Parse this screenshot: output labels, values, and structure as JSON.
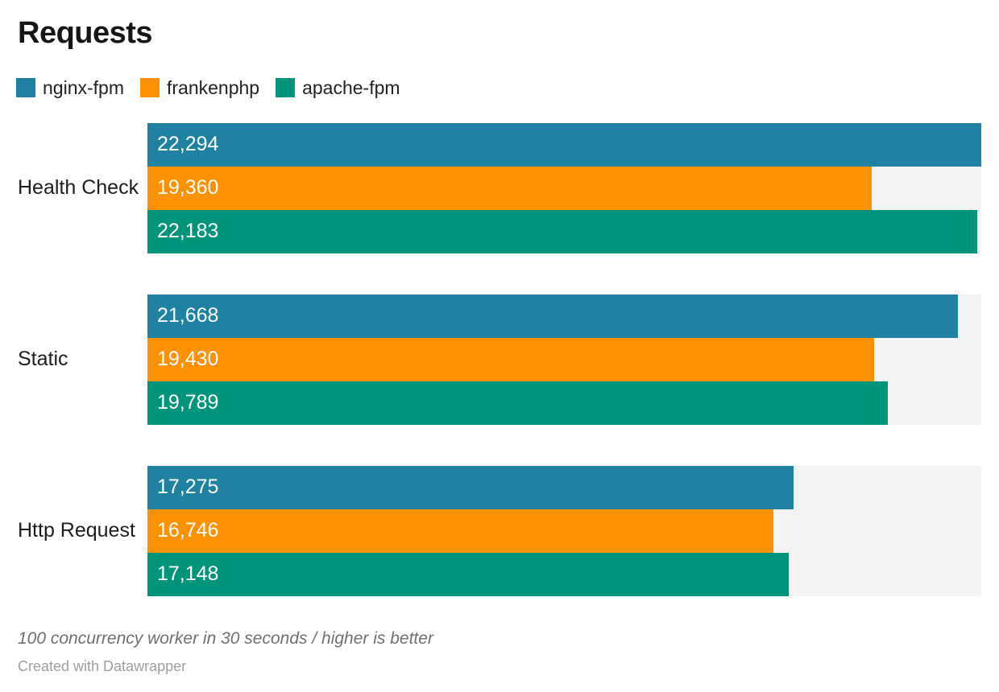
{
  "title": "Requests",
  "legend": [
    {
      "label": "nginx-fpm",
      "color": "#2082a2"
    },
    {
      "label": "frankenphp",
      "color": "#fb9103"
    },
    {
      "label": "apache-fpm",
      "color": "#00947a"
    }
  ],
  "chart_data": {
    "type": "bar",
    "orientation": "horizontal",
    "title": "Requests",
    "categories": [
      "Health Check",
      "Static",
      "Http Request"
    ],
    "series": [
      {
        "name": "nginx-fpm",
        "color": "#2082a2",
        "values": [
          22294,
          21668,
          17275
        ]
      },
      {
        "name": "frankenphp",
        "color": "#fb9103",
        "values": [
          19360,
          19430,
          16746
        ]
      },
      {
        "name": "apache-fpm",
        "color": "#00947a",
        "values": [
          22183,
          19789,
          17148
        ]
      }
    ],
    "xlim": [
      0,
      22294
    ],
    "value_label_format": "thousands-comma",
    "value_label_color": "#ffffff",
    "track_color": "#f3f3f3",
    "legend_position": "top",
    "grid": false
  },
  "footer": {
    "note": "100 concurrency worker in 30 seconds / higher is better",
    "attribution": "Created with Datawrapper"
  }
}
